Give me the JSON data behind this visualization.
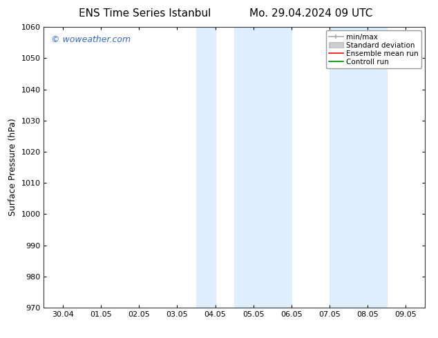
{
  "title_left": "ENS Time Series Istanbul",
  "title_right": "Mo. 29.04.2024 09 UTC",
  "ylabel": "Surface Pressure (hPa)",
  "ylim": [
    970,
    1060
  ],
  "yticks": [
    970,
    980,
    990,
    1000,
    1010,
    1020,
    1030,
    1040,
    1050,
    1060
  ],
  "xtick_labels": [
    "30.04",
    "01.05",
    "02.05",
    "03.05",
    "04.05",
    "05.05",
    "06.05",
    "07.05",
    "08.05",
    "09.05"
  ],
  "xtick_positions": [
    0,
    1,
    2,
    3,
    4,
    5,
    6,
    7,
    8,
    9
  ],
  "x_min": -0.5,
  "x_max": 9.5,
  "background_color": "#ffffff",
  "plot_bg_color": "#ffffff",
  "shaded_bands": [
    {
      "x_start": 3.5,
      "x_end": 4.0,
      "color": "#ddeeff"
    },
    {
      "x_start": 4.5,
      "x_end": 5.5,
      "color": "#ddeeff"
    },
    {
      "x_start": 7.0,
      "x_end": 7.5,
      "color": "#ddeeff"
    },
    {
      "x_start": 7.5,
      "x_end": 8.0,
      "color": "#ddeeff"
    }
  ],
  "watermark": "© woweather.com",
  "watermark_color": "#3366cc",
  "legend_entries": [
    {
      "label": "min/max",
      "color": "#aaaaaa",
      "style": "minmax"
    },
    {
      "label": "Standard deviation",
      "color": "#cccccc",
      "style": "stddev"
    },
    {
      "label": "Ensemble mean run",
      "color": "#ff0000",
      "style": "line"
    },
    {
      "label": "Controll run",
      "color": "#008000",
      "style": "line"
    }
  ],
  "font_family": "DejaVu Sans",
  "title_fontsize": 11,
  "watermark_fontsize": 9,
  "axis_label_fontsize": 9,
  "tick_fontsize": 8,
  "legend_fontsize": 7.5
}
